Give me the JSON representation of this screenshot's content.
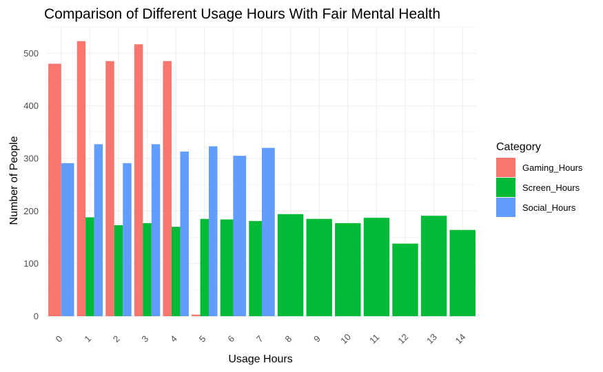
{
  "chart_data": {
    "type": "bar",
    "title": "Comparison of Different Usage Hours With Fair Mental Health",
    "xlabel": "Usage Hours",
    "ylabel": "Number of People",
    "categories": [
      "0",
      "1",
      "2",
      "3",
      "4",
      "5",
      "6",
      "7",
      "8",
      "9",
      "10",
      "11",
      "12",
      "13",
      "14"
    ],
    "ylim": [
      0,
      550
    ],
    "yticks": [
      0,
      100,
      200,
      300,
      400,
      500
    ],
    "legend_title": "Category",
    "legend_position": "right",
    "grid": true,
    "series": [
      {
        "name": "Gaming_Hours",
        "color": "#F8766D",
        "values": [
          480,
          523,
          485,
          517,
          485,
          3,
          null,
          null,
          null,
          null,
          null,
          null,
          null,
          null,
          null
        ]
      },
      {
        "name": "Screen_Hours",
        "color": "#00BA38",
        "values": [
          null,
          188,
          173,
          177,
          170,
          185,
          184,
          181,
          194,
          185,
          177,
          187,
          138,
          191,
          164
        ]
      },
      {
        "name": "Social_Hours",
        "color": "#619CFF",
        "values": [
          291,
          327,
          291,
          327,
          313,
          323,
          305,
          320,
          null,
          null,
          null,
          null,
          null,
          null,
          null
        ]
      }
    ]
  }
}
